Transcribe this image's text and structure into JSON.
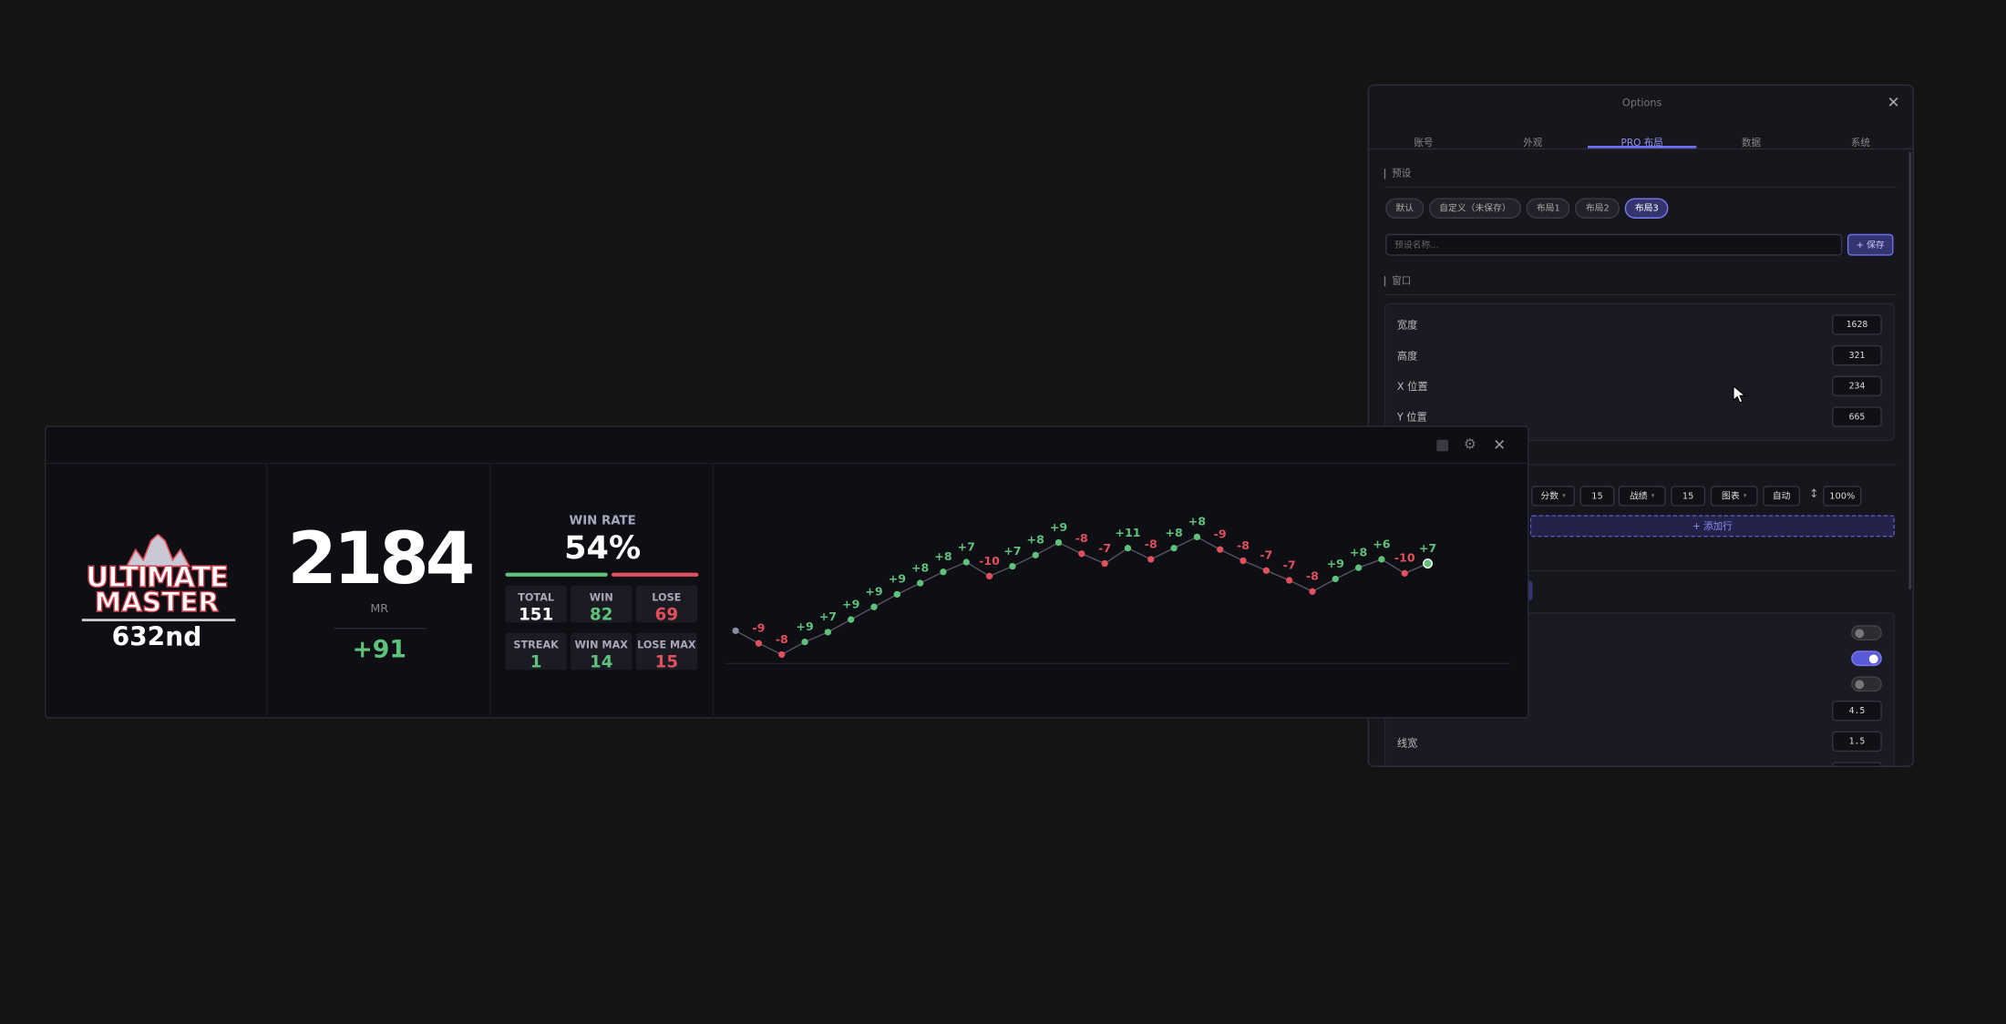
{
  "options": {
    "title": "Options",
    "tabs": [
      "账号",
      "外观",
      "PRO 布局",
      "数据",
      "系统"
    ],
    "active_tab": 2,
    "presets_section": "预设",
    "presets": [
      "默认",
      "自定义（未保存）",
      "布局1",
      "布局2",
      "布局3"
    ],
    "active_preset": 4,
    "preset_placeholder": "预设名称...",
    "save_button": "+ 保存",
    "window_section": "窗口",
    "window_fields": [
      {
        "label": "宽度",
        "value": 1628
      },
      {
        "label": "高度",
        "value": 321
      },
      {
        "label": "X 位置",
        "value": 234
      },
      {
        "label": "Y 位置",
        "value": 665
      }
    ],
    "row_controls": [
      "分数",
      "15",
      "战绩",
      "15",
      "图表",
      "自动",
      "100%"
    ],
    "add_row": "+ 添加行",
    "toggles": [
      false,
      true,
      false
    ],
    "number_fields": [
      "4.5",
      "1.5"
    ],
    "line_width_label": "线宽"
  },
  "overlay": {
    "rank_title": [
      "ULTIMATE",
      "MASTER"
    ],
    "rank": "632nd",
    "mr": 2184,
    "mr_label": "MR",
    "mr_change": "+91",
    "win_rate_label": "WIN RATE",
    "win_rate": "54%",
    "stats": [
      {
        "label": "TOTAL",
        "value": 151,
        "color": "#ffffff"
      },
      {
        "label": "WIN",
        "value": 82,
        "color": "#5fc27a"
      },
      {
        "label": "LOSE",
        "value": 69,
        "color": "#e2505c"
      },
      {
        "label": "STREAK",
        "value": 1,
        "color": "#5fc27a"
      },
      {
        "label": "WIN MAX",
        "value": 14,
        "color": "#5fc27a"
      },
      {
        "label": "LOSE MAX",
        "value": 15,
        "color": "#e2505c"
      }
    ],
    "win_color": "#5fc27a",
    "lose_color": "#e2505c",
    "history": [
      -9,
      -8,
      9,
      7,
      9,
      9,
      9,
      8,
      8,
      7,
      -10,
      7,
      8,
      9,
      -8,
      -7,
      11,
      -8,
      8,
      8,
      -9,
      -8,
      -7,
      -7,
      -8,
      9,
      8,
      6,
      -10,
      7
    ],
    "history_labels": [
      "-9",
      "-8",
      "+9",
      "+7",
      "+9",
      "+9",
      "+9",
      "+8",
      "+8",
      "+7",
      "-10",
      "+7",
      "+8",
      "+9",
      "-8",
      "-7",
      "+11",
      "-8",
      "+8",
      "+8",
      "-9",
      "-8",
      "-7",
      "-7",
      "-8",
      "+9",
      "+8",
      "+6",
      "-10",
      "+7"
    ]
  }
}
